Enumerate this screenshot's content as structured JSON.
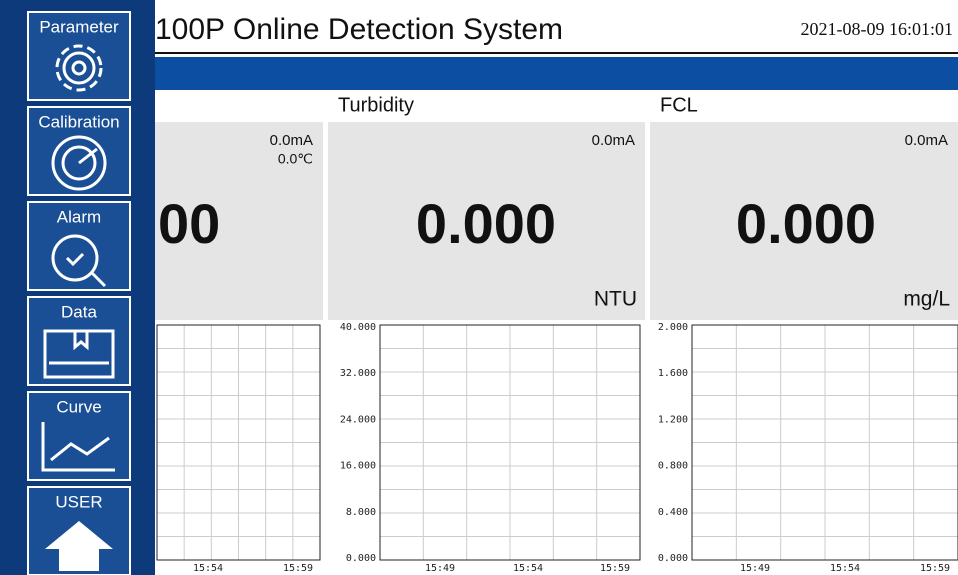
{
  "header": {
    "title": "100P Online Detection System",
    "datetime": "2021-08-09 16:01:01"
  },
  "sidebar": {
    "buttons": [
      "Parameter",
      "Calibration",
      "Alarm",
      "Data",
      "Curve",
      "USER"
    ]
  },
  "panels": [
    {
      "current": "0.0mA",
      "temperature": "0.0℃",
      "value": "00",
      "chart": {
        "xticks": [
          "15:54",
          "15:59"
        ]
      }
    },
    {
      "title": "Turbidity",
      "current": "0.0mA",
      "value": "0.000",
      "unit": "NTU",
      "chart": {
        "yticks": [
          "40.000",
          "32.000",
          "24.000",
          "16.000",
          "8.000",
          "0.000"
        ],
        "xticks": [
          "15:49",
          "15:54",
          "15:59"
        ]
      }
    },
    {
      "title": "FCL",
      "current": "0.0mA",
      "value": "0.000",
      "unit": "mg/L",
      "chart": {
        "yticks": [
          "2.000",
          "1.600",
          "1.200",
          "0.800",
          "0.400",
          "0.000"
        ],
        "xticks": [
          "15:49",
          "15:54",
          "15:59"
        ]
      }
    }
  ]
}
